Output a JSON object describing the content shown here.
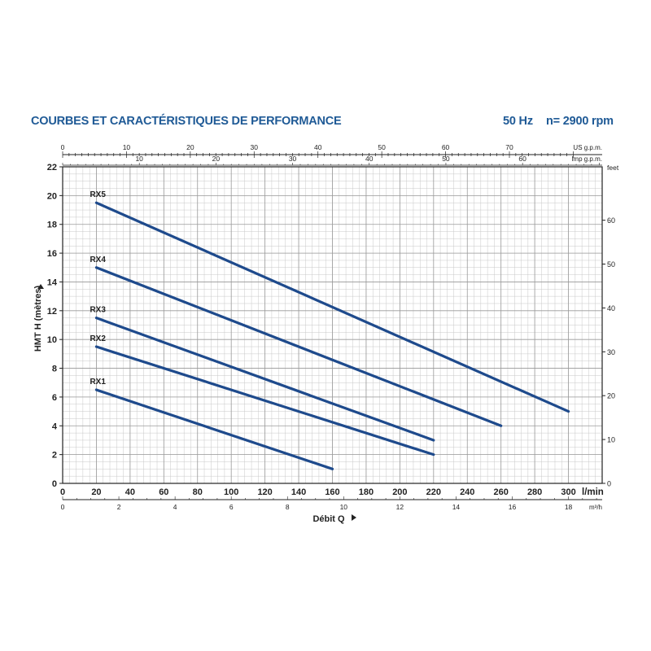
{
  "header": {
    "title": "COURBES ET CARACTÉRISTIQUES DE PERFORMANCE",
    "frequency": "50 Hz",
    "speed": "n= 2900 rpm"
  },
  "colors": {
    "title": "#1f5a96",
    "curve": "#1e4a8c",
    "grid": "#c8c8c8",
    "axis": "#222222"
  },
  "chart_data": {
    "type": "line",
    "title": "",
    "xlabel": "Débit Q",
    "ylabel": "HMT H (mètres)",
    "xlim": [
      0,
      320
    ],
    "ylim": [
      0,
      22
    ],
    "grid": true,
    "x_unit": "l/min",
    "x_ticks": [
      0,
      20,
      40,
      60,
      80,
      100,
      120,
      140,
      160,
      180,
      200,
      220,
      240,
      260,
      280,
      300
    ],
    "y_ticks": [
      0,
      2,
      4,
      6,
      8,
      10,
      12,
      14,
      16,
      18,
      20,
      22
    ],
    "secondary_axes": {
      "top_us_gpm": {
        "unit": "US g.p.m.",
        "ticks": [
          0,
          10,
          20,
          30,
          40,
          50,
          60,
          70
        ]
      },
      "top_imp_gpm": {
        "unit": "Imp g.p.m.",
        "ticks": [
          10,
          20,
          30,
          40,
          50,
          60
        ]
      },
      "bottom_m3h": {
        "unit": "m³/h",
        "ticks": [
          0,
          2,
          4,
          6,
          8,
          10,
          12,
          14,
          16,
          18
        ]
      },
      "right_feet": {
        "unit": "feet",
        "ticks": [
          0,
          10,
          20,
          30,
          40,
          50,
          60
        ]
      }
    },
    "series": [
      {
        "name": "RX1",
        "x": [
          20,
          160
        ],
        "y": [
          6.5,
          1.0
        ]
      },
      {
        "name": "RX2",
        "x": [
          20,
          220
        ],
        "y": [
          9.5,
          2.0
        ]
      },
      {
        "name": "RX3",
        "x": [
          20,
          220
        ],
        "y": [
          11.5,
          3.0
        ]
      },
      {
        "name": "RX4",
        "x": [
          20,
          260
        ],
        "y": [
          15.0,
          4.0
        ]
      },
      {
        "name": "RX5",
        "x": [
          20,
          300
        ],
        "y": [
          19.5,
          5.0
        ]
      }
    ]
  }
}
